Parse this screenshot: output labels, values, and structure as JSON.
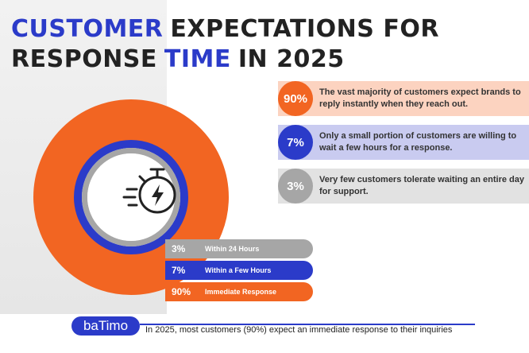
{
  "header": {
    "title": [
      {
        "text": "CUSTOMER",
        "color": "#2b3bc9"
      },
      {
        "text": "EXPECTATIONS FOR",
        "color": "#222222"
      },
      {
        "text": "RESPONSE",
        "color": "#222222"
      },
      {
        "text": "TIME",
        "color": "#2b3bc9"
      },
      {
        "text": "IN 2025",
        "color": "#222222"
      }
    ]
  },
  "chart_data": {
    "type": "donut",
    "categories": [
      "Immediate Response",
      "Within a Few Hours",
      "Within 24 Hours"
    ],
    "values": [
      90,
      7,
      3
    ],
    "value_labels": [
      "90%",
      "7%",
      "3%"
    ],
    "colors": [
      "#f26522",
      "#2b3bc9",
      "#a6a6a6"
    ],
    "callouts": [
      "The vast majority of customers expect brands to reply instantly when they reach out.",
      "Only a small portion of customers are willing to wait a few hours for a response.",
      "Very few customers tolerate waiting an entire day for support."
    ]
  },
  "footer": {
    "logo": "baTimo",
    "note": "In 2025, most customers (90%) expect an immediate response to their inquiries"
  }
}
